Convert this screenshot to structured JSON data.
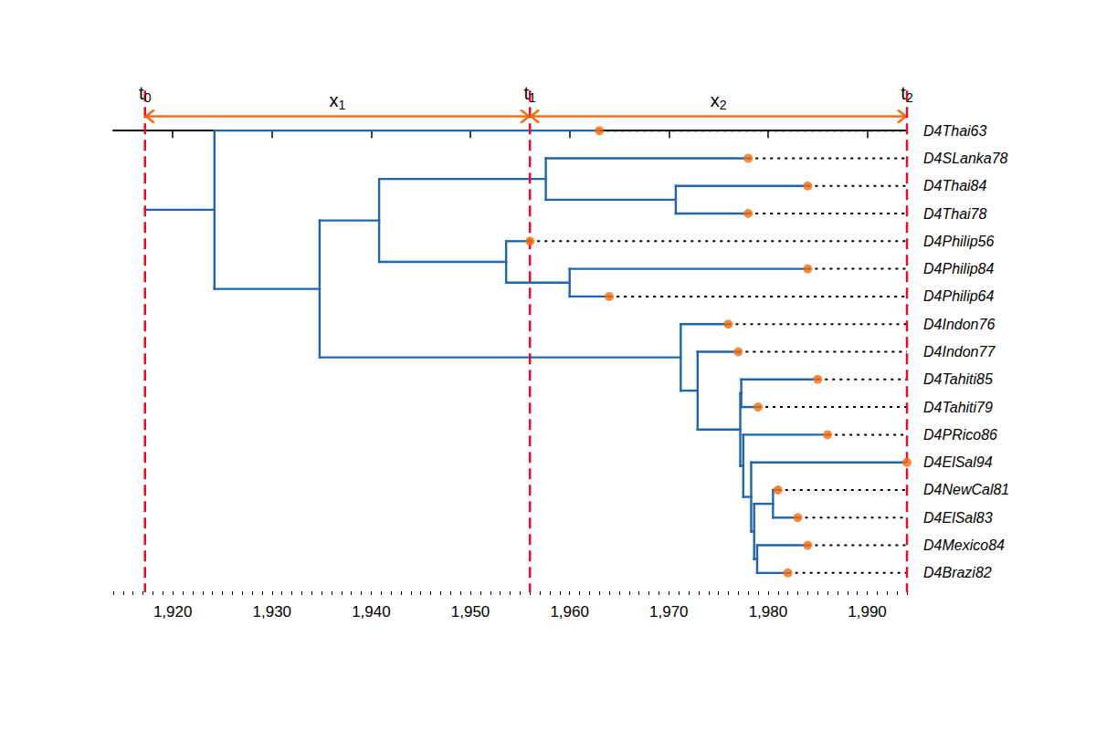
{
  "chart_data": {
    "type": "phylogenetic_tree",
    "xlim": [
      1914,
      1994
    ],
    "xticks": [
      1920,
      1930,
      1940,
      1950,
      1960,
      1970,
      1980,
      1990
    ],
    "tick_labels": "x",
    "color": "#2166ac",
    "epochs": [
      {
        "label": "t0",
        "time": 1917.2
      },
      {
        "label": "t1",
        "time": 1956
      },
      {
        "label": "t2",
        "time": 1994
      }
    ],
    "intervals": [
      "x1",
      "x2"
    ],
    "tree": {
      "time": 1917.2,
      "children": [
        {
          "time": 1924.2,
          "children": [
            {
              "name": "D4Thai63",
              "time": 1963
            },
            {
              "time": 1934.8,
              "children": [
                {
                  "time": 1940.8,
                  "children": [
                    {
                      "time": 1957.6,
                      "children": [
                        {
                          "name": "D4SLanka78",
                          "time": 1978
                        },
                        {
                          "time": 1970.7,
                          "children": [
                            {
                              "name": "D4Thai84",
                              "time": 1984
                            },
                            {
                              "name": "D4Thai78",
                              "time": 1978
                            }
                          ]
                        }
                      ]
                    },
                    {
                      "time": 1953.6,
                      "children": [
                        {
                          "name": "D4Philip56",
                          "time": 1956
                        },
                        {
                          "time": 1960.0,
                          "children": [
                            {
                              "name": "D4Philip84",
                              "time": 1984
                            },
                            {
                              "name": "D4Philip64",
                              "time": 1964
                            }
                          ]
                        }
                      ]
                    }
                  ]
                },
                {
                  "time": 1971.2,
                  "children": [
                    {
                      "name": "D4Indon76",
                      "time": 1976
                    },
                    {
                      "time": 1972.9,
                      "children": [
                        {
                          "name": "D4Indon77",
                          "time": 1977
                        },
                        {
                          "time": 1977.2,
                          "children": [
                            {
                              "time": 1977.3,
                              "children": [
                                {
                                  "name": "D4Tahiti85",
                                  "time": 1985
                                },
                                {
                                  "name": "D4Tahiti79",
                                  "time": 1979
                                }
                              ]
                            },
                            {
                              "time": 1977.5,
                              "children": [
                                {
                                  "name": "D4PRico86",
                                  "time": 1986
                                },
                                {
                                  "time": 1978.3,
                                  "children": [
                                    {
                                      "name": "D4ElSal94",
                                      "time": 1994
                                    },
                                    {
                                      "time": 1978.6,
                                      "children": [
                                        {
                                          "time": 1980.5,
                                          "children": [
                                            {
                                              "name": "D4NewCal81",
                                              "time": 1981
                                            },
                                            {
                                              "name": "D4ElSal83",
                                              "time": 1983
                                            }
                                          ]
                                        },
                                        {
                                          "time": 1978.9,
                                          "children": [
                                            {
                                              "name": "D4Mexico84",
                                              "time": 1984
                                            },
                                            {
                                              "name": "D4Brazi82",
                                              "time": 1982
                                            }
                                          ]
                                        }
                                      ]
                                    }
                                  ]
                                }
                              ]
                            }
                          ]
                        }
                      ]
                    }
                  ]
                }
              ]
            }
          ]
        }
      ]
    }
  }
}
